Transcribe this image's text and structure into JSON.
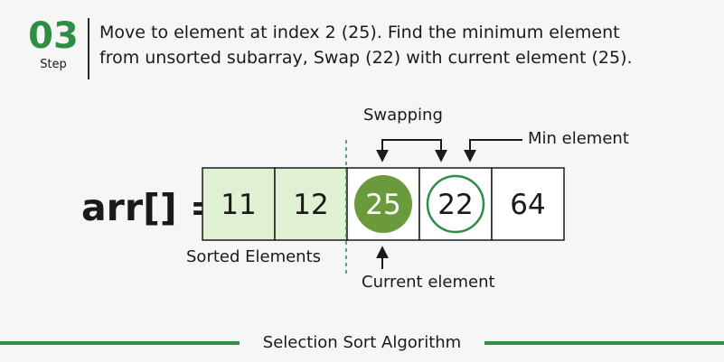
{
  "step": {
    "number": "03",
    "label": "Step"
  },
  "description": {
    "line1": "Move to element at index 2 (25). Find the minimum element",
    "line2": "from unsorted subarray, Swap (22) with current element (25)."
  },
  "array": {
    "label": "arr[] =",
    "cells": [
      {
        "value": "11",
        "state": "sorted"
      },
      {
        "value": "12",
        "state": "sorted"
      },
      {
        "value": "25",
        "state": "current"
      },
      {
        "value": "22",
        "state": "min"
      },
      {
        "value": "64",
        "state": "unsorted"
      }
    ]
  },
  "labels": {
    "swapping": "Swapping",
    "min_element": "Min element",
    "sorted_elements": "Sorted Elements",
    "current_element": "Current element"
  },
  "footer": {
    "title": "Selection Sort Algorithm"
  },
  "colors": {
    "accent": "#2f8d46",
    "sorted_fill": "#dff0d3",
    "current_fill": "#6a9a3c",
    "min_ring": "#2f8d46"
  }
}
